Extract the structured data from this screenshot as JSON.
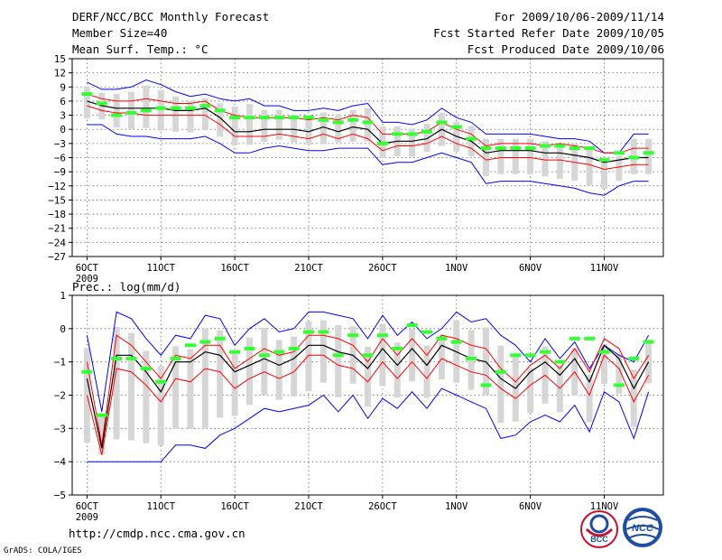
{
  "header": {
    "title": "DERF/NCC/BCC Monthly Forecast",
    "member_size": "Member Size=40",
    "variable": "Mean Surf. Temp.: °C",
    "period": "For 2009/10/06-2009/11/14",
    "fcst_started": "Fcst Started Refer Date 2009/10/05",
    "fcst_produced": "Fcst Produced Date 2009/10/06"
  },
  "footer": {
    "url": "http://cmdp.ncc.cma.gov.cn",
    "grads": "GrADS: COLA/IGES",
    "logo_bcc": "BCC",
    "logo_ncc": "NCC"
  },
  "colors": {
    "mean": "#000000",
    "spread": "#ff0000",
    "range": "#0000ff",
    "box": "#d6d6d6",
    "observed": "#33ff33",
    "grid": "#666666"
  },
  "chart_data": [
    {
      "type": "line",
      "title": "Mean Surf. Temp.: °C",
      "ylabel": "°C",
      "ylim": [
        -27,
        15
      ],
      "yticks": [
        15,
        12,
        9,
        6,
        3,
        0,
        -3,
        -6,
        -9,
        -12,
        -15,
        -18,
        -21,
        -24,
        -27
      ],
      "ytick_labels": [
        "15",
        "12",
        "9",
        "6",
        "3",
        "0",
        "−3",
        "−6",
        "−9",
        "−12",
        "−15",
        "−18",
        "−21",
        "−24",
        "−27"
      ],
      "xlim": [
        0,
        40
      ],
      "xticks": [
        1,
        6,
        11,
        16,
        21,
        26,
        31,
        36
      ],
      "xtick_labels": [
        "6OCT",
        "11OCT",
        "16OCT",
        "21OCT",
        "26OCT",
        "1NOV",
        "6NOV",
        "11NOV"
      ],
      "year_label": "2009",
      "x": [
        1,
        2,
        3,
        4,
        5,
        6,
        7,
        8,
        9,
        10,
        11,
        12,
        13,
        14,
        15,
        16,
        17,
        18,
        19,
        20,
        21,
        22,
        23,
        24,
        25,
        26,
        27,
        28,
        29,
        30,
        31,
        32,
        33,
        34,
        35,
        36,
        37,
        38,
        39
      ],
      "series": [
        {
          "name": "Max",
          "values": [
            10,
            8.5,
            8.5,
            9,
            10.5,
            9.5,
            8,
            7,
            7.5,
            6.5,
            6,
            6.5,
            5,
            5,
            4,
            4,
            4.5,
            4,
            5,
            5.5,
            1.5,
            1.5,
            1,
            2,
            4.5,
            2.5,
            1.5,
            -1,
            -1,
            -1,
            -1,
            -1.5,
            -2,
            -2,
            -2.5,
            -5,
            -5,
            -1,
            -1
          ]
        },
        {
          "name": "Upper",
          "values": [
            7.5,
            6.5,
            6,
            6,
            6.5,
            6,
            5.5,
            5.5,
            6,
            4,
            3,
            2.5,
            2.5,
            2.5,
            2.5,
            2,
            2.5,
            2,
            3,
            2.5,
            -1,
            -1,
            -1,
            -0.5,
            1.5,
            0,
            -1,
            -3.5,
            -3,
            -3,
            -3,
            -3.5,
            -3,
            -3.5,
            -4,
            -5,
            -5,
            -4,
            -4
          ]
        },
        {
          "name": "Mean",
          "values": [
            6,
            5,
            4.5,
            4.5,
            4.5,
            4.5,
            4,
            4,
            4.5,
            2.5,
            -0.5,
            -0.5,
            0,
            0,
            0,
            -0.5,
            0.5,
            -0.5,
            0.5,
            0,
            -3,
            -2.5,
            -2.5,
            -2,
            0,
            -1.5,
            -2.5,
            -5,
            -4.5,
            -4.5,
            -4.5,
            -5,
            -5,
            -5.5,
            -6,
            -7,
            -6.5,
            -6,
            -6
          ]
        },
        {
          "name": "Lower",
          "values": [
            5,
            4,
            3.5,
            3.5,
            3,
            3,
            3,
            3,
            3,
            1,
            -1.5,
            -1.5,
            -1.5,
            -1,
            -1.5,
            -2,
            -1,
            -2,
            -1,
            -2,
            -4.5,
            -3.5,
            -3.5,
            -3,
            -1.5,
            -3,
            -4,
            -6.5,
            -6,
            -6,
            -6,
            -6.5,
            -6.5,
            -7,
            -7.5,
            -8.5,
            -8,
            -7.5,
            -7.5
          ]
        },
        {
          "name": "Min",
          "values": [
            1,
            1,
            -1,
            -1.5,
            -1.5,
            -2,
            -2,
            -2,
            -1.5,
            -3,
            -5,
            -5,
            -4,
            -3.5,
            -4,
            -4.5,
            -4.5,
            -4,
            -4,
            -4,
            -7.5,
            -7,
            -7,
            -6,
            -5,
            -6,
            -7,
            -11.5,
            -11,
            -11,
            -11,
            -11.5,
            -12,
            -12.5,
            -13.5,
            -14,
            -12,
            -11,
            -11
          ]
        },
        {
          "name": "Observed",
          "values": [
            7.5,
            5.5,
            3,
            3.5,
            4,
            4.5,
            4.5,
            4.5,
            5,
            4,
            2.5,
            2.5,
            2.5,
            2.5,
            2.5,
            2.5,
            2,
            1.5,
            2,
            1.5,
            -3,
            -1,
            -1,
            -0.5,
            1.5,
            0.5,
            -2,
            -4,
            -4,
            -4,
            -4,
            -3.5,
            -3.5,
            -4,
            -4,
            -6.5,
            -5,
            -6,
            -5
          ]
        }
      ]
    },
    {
      "type": "line",
      "title": "Prec.: log(mm/d)",
      "ylabel": "log(mm/d)",
      "ylim": [
        -5,
        1
      ],
      "yticks": [
        1,
        0,
        -1,
        -2,
        -3,
        -4,
        -5
      ],
      "ytick_labels": [
        "1",
        "0",
        "−1",
        "−2",
        "−3",
        "−4",
        "−5"
      ],
      "xlim": [
        0,
        40
      ],
      "xticks": [
        1,
        6,
        11,
        16,
        21,
        26,
        31,
        36
      ],
      "xtick_labels": [
        "6OCT",
        "11OCT",
        "16OCT",
        "21OCT",
        "26OCT",
        "1NOV",
        "6NOV",
        "11NOV"
      ],
      "year_label": "2009",
      "x": [
        1,
        2,
        3,
        4,
        5,
        6,
        7,
        8,
        9,
        10,
        11,
        12,
        13,
        14,
        15,
        16,
        17,
        18,
        19,
        20,
        21,
        22,
        23,
        24,
        25,
        26,
        27,
        28,
        29,
        30,
        31,
        32,
        33,
        34,
        35,
        36,
        37,
        38,
        39
      ],
      "series": [
        {
          "name": "Max",
          "values": [
            -0.2,
            -2.5,
            0.5,
            0.3,
            -0.3,
            -0.8,
            -0.2,
            -0.3,
            0.4,
            0.3,
            -0.5,
            0,
            0.3,
            -0.1,
            0,
            0.5,
            0.5,
            0.4,
            0.3,
            -0.3,
            0.4,
            -0.2,
            0.2,
            -0.3,
            0,
            0.5,
            0.2,
            0.3,
            -0.2,
            -0.5,
            -1.0,
            -0.3,
            -0.9,
            -0.4,
            -1.2,
            -0.5,
            -0.8,
            -1.0,
            -0.2
          ]
        },
        {
          "name": "Upper",
          "values": [
            -1.0,
            -3.5,
            -0.2,
            -0.5,
            -1.0,
            -1.5,
            -0.8,
            -0.9,
            -0.5,
            -0.5,
            -1.2,
            -0.9,
            -0.6,
            -0.8,
            -0.7,
            -0.2,
            -0.2,
            -0.3,
            -0.5,
            -1.0,
            -0.3,
            -0.8,
            -0.3,
            -0.8,
            -0.2,
            -0.3,
            -0.5,
            -0.6,
            -1.2,
            -1.6,
            -1.1,
            -0.8,
            -1.2,
            -0.6,
            -1.3,
            -0.3,
            -0.6,
            -1.5,
            -0.8
          ]
        },
        {
          "name": "Mean",
          "values": [
            -1.5,
            -3.6,
            -0.8,
            -0.8,
            -1.3,
            -1.9,
            -1.0,
            -1.0,
            -0.7,
            -0.8,
            -1.3,
            -1.1,
            -0.9,
            -1.1,
            -0.9,
            -0.5,
            -0.5,
            -0.7,
            -0.8,
            -1.2,
            -0.6,
            -1.1,
            -0.6,
            -1.1,
            -0.5,
            -0.7,
            -0.9,
            -1.0,
            -1.5,
            -1.8,
            -1.3,
            -1.0,
            -1.4,
            -0.9,
            -1.6,
            -0.5,
            -0.9,
            -1.8,
            -1.0
          ]
        },
        {
          "name": "Lower",
          "values": [
            -2.0,
            -3.8,
            -1.2,
            -1.3,
            -1.7,
            -2.2,
            -1.5,
            -1.6,
            -1.2,
            -1.3,
            -1.8,
            -1.5,
            -1.3,
            -1.5,
            -1.3,
            -0.8,
            -0.8,
            -1.1,
            -1.2,
            -1.6,
            -1.0,
            -1.5,
            -1.0,
            -1.5,
            -0.9,
            -1.1,
            -1.3,
            -1.4,
            -1.8,
            -2.1,
            -1.7,
            -1.4,
            -1.8,
            -1.3,
            -2.0,
            -0.8,
            -1.2,
            -2.2,
            -1.4
          ]
        },
        {
          "name": "Min",
          "values": [
            -4,
            -4,
            -4,
            -4,
            -4,
            -4,
            -3.5,
            -3.5,
            -3.6,
            -3.2,
            -3.0,
            -2.7,
            -2.4,
            -2.5,
            -2.4,
            -2.3,
            -2.0,
            -2.5,
            -2.0,
            -2.7,
            -2.1,
            -2.4,
            -1.9,
            -2.4,
            -1.8,
            -2.0,
            -2.2,
            -2.4,
            -3.3,
            -3.2,
            -2.8,
            -2.6,
            -2.8,
            -2.3,
            -3.1,
            -1.9,
            -2.2,
            -3.3,
            -1.9
          ]
        },
        {
          "name": "Observed",
          "values": [
            -1.3,
            -2.6,
            -0.9,
            -0.9,
            -1.2,
            -1.6,
            -0.9,
            -0.5,
            -0.4,
            -0.3,
            -0.7,
            -0.6,
            -0.8,
            -0.7,
            -0.6,
            -0.1,
            -0.1,
            -0.8,
            -0.2,
            -0.8,
            -0.2,
            -0.6,
            0.1,
            -0.1,
            -0.3,
            -0.4,
            -0.9,
            -1.7,
            -1.3,
            -0.8,
            -0.8,
            -0.7,
            -1.0,
            -0.3,
            -0.3,
            -0.7,
            -1.7,
            -0.9,
            -0.4
          ]
        }
      ]
    }
  ]
}
